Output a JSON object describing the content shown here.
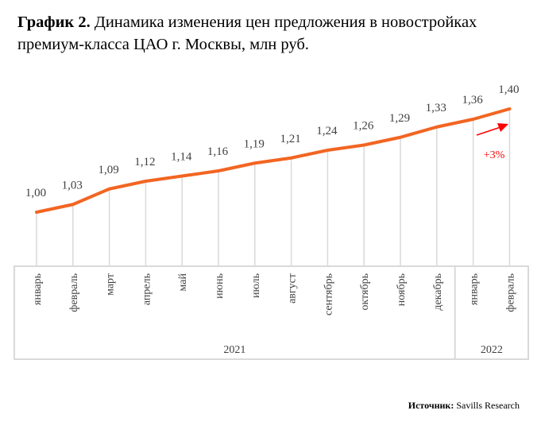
{
  "title": {
    "bold": "График 2.",
    "text": " Динамика изменения цен предложения в новостройках премиум-класса ЦАО г. Москвы, млн руб."
  },
  "source": {
    "label": "Источник:",
    "text": " Savills Research"
  },
  "chart_data": {
    "type": "line",
    "categories": [
      "январь",
      "февраль",
      "март",
      "апрель",
      "май",
      "июнь",
      "июль",
      "август",
      "сентябрь",
      "октябрь",
      "ноябрь",
      "декабрь",
      "январь",
      "февраль"
    ],
    "groups": [
      {
        "label": "2021",
        "count": 12
      },
      {
        "label": "2022",
        "count": 2
      }
    ],
    "values": [
      1.0,
      1.03,
      1.09,
      1.12,
      1.14,
      1.16,
      1.19,
      1.21,
      1.24,
      1.26,
      1.29,
      1.33,
      1.36,
      1.4
    ],
    "value_labels": [
      "1,00",
      "1,03",
      "1,09",
      "1,12",
      "1,14",
      "1,16",
      "1,19",
      "1,21",
      "1,24",
      "1,26",
      "1,29",
      "1,33",
      "1,36",
      "1,40"
    ],
    "annotation": "+3%",
    "line_color": "#f26522",
    "annotation_color": "#ff0000",
    "ylabel": "",
    "xlabel": ""
  }
}
